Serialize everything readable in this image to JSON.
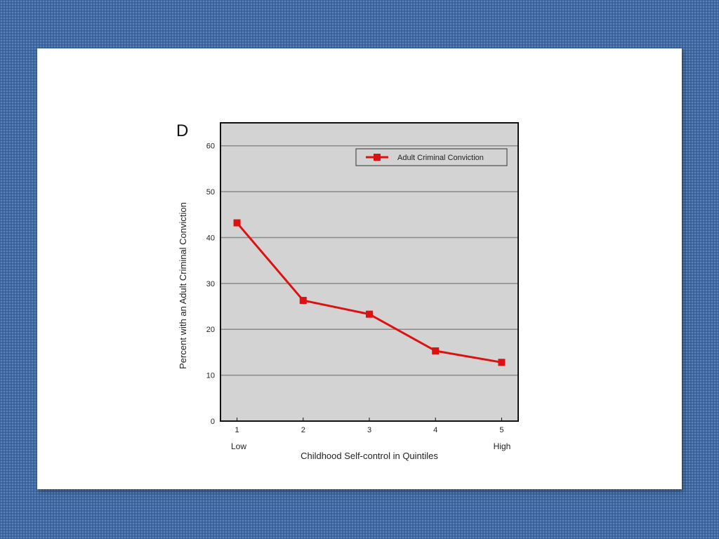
{
  "chart_data": {
    "type": "line",
    "panel_label": "D",
    "x": [
      1,
      2,
      3,
      4,
      5
    ],
    "x_tick_labels": [
      "1",
      "2",
      "3",
      "4",
      "5"
    ],
    "x_end_labels": {
      "low": "Low",
      "high": "High"
    },
    "series": [
      {
        "name": "Adult Criminal Conviction",
        "values": [
          43.2,
          26.3,
          23.3,
          15.3,
          12.8
        ]
      }
    ],
    "xlabel": "Childhood Self-control in Quintiles",
    "ylabel": "Percent with an Adult Criminal Conviction",
    "ylim": [
      0,
      65
    ],
    "yticks": [
      0,
      10,
      20,
      30,
      40,
      50,
      60
    ],
    "grid": true,
    "legend_position": "top-right",
    "colors": {
      "series": "#dd1111",
      "plot_background": "#d3d3d3",
      "gridline": "#8a8a8a"
    }
  }
}
